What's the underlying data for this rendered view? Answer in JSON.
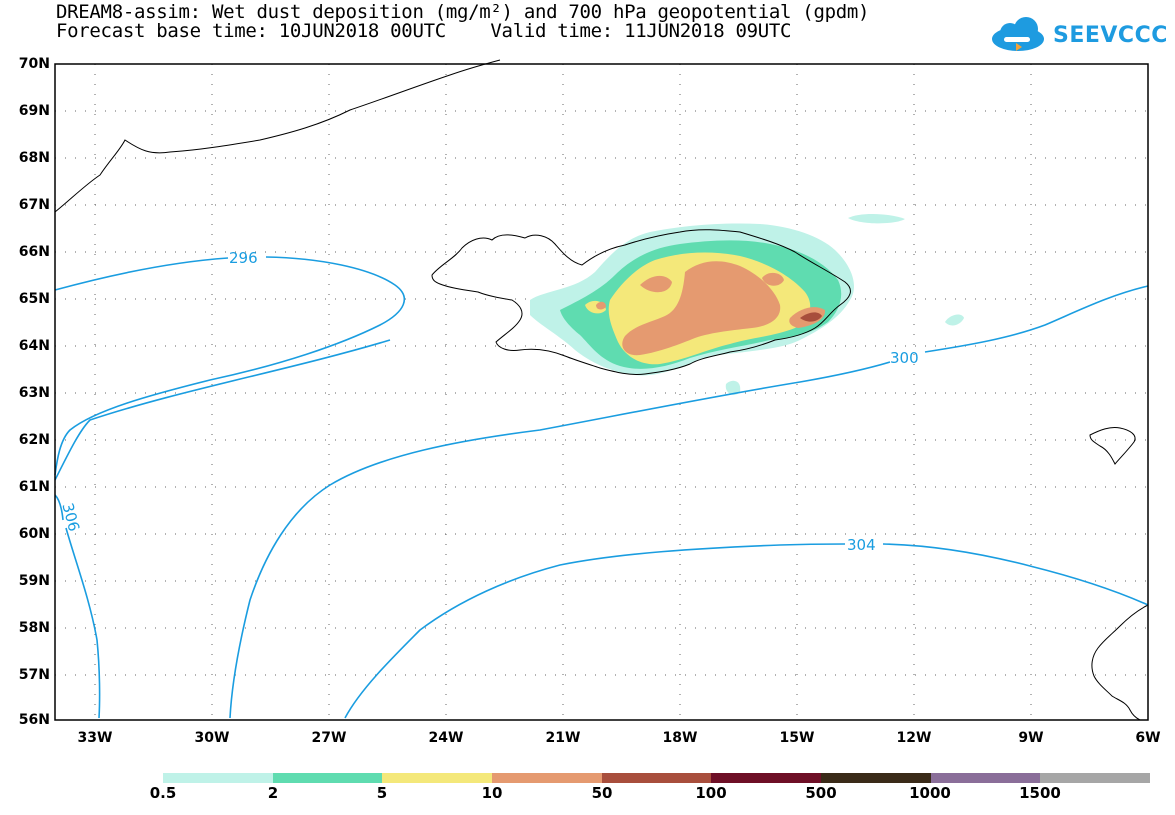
{
  "header": {
    "title_line1": "DREAM8-assim: Wet dust deposition (mg/m²) and 700 hPa geopotential (gpdm)",
    "title_line2": "Forecast base time: 10JUN2018 00UTC    Valid time: 11JUN2018 09UTC",
    "logo_text": "SEEVCCC"
  },
  "map": {
    "lat_labels": [
      "70N",
      "69N",
      "68N",
      "67N",
      "66N",
      "65N",
      "64N",
      "63N",
      "62N",
      "61N",
      "60N",
      "59N",
      "58N",
      "57N",
      "56N"
    ],
    "lon_labels": [
      "33W",
      "30W",
      "27W",
      "24W",
      "21W",
      "18W",
      "15W",
      "12W",
      "9W",
      "6W"
    ],
    "contour_labels": [
      "296",
      "300",
      "304",
      "306"
    ],
    "contour_color": "#1a9de0",
    "coast_color": "#000000"
  },
  "colorbar": {
    "colors": [
      "#bff2e8",
      "#5fdcb0",
      "#f4e87a",
      "#e59a70",
      "#a84e3c",
      "#6e0f26",
      "#3a2a18",
      "#8a6e99",
      "#a6a6a6"
    ],
    "labels": [
      "0.5",
      "2",
      "5",
      "10",
      "50",
      "100",
      "500",
      "1000",
      "1500"
    ]
  }
}
